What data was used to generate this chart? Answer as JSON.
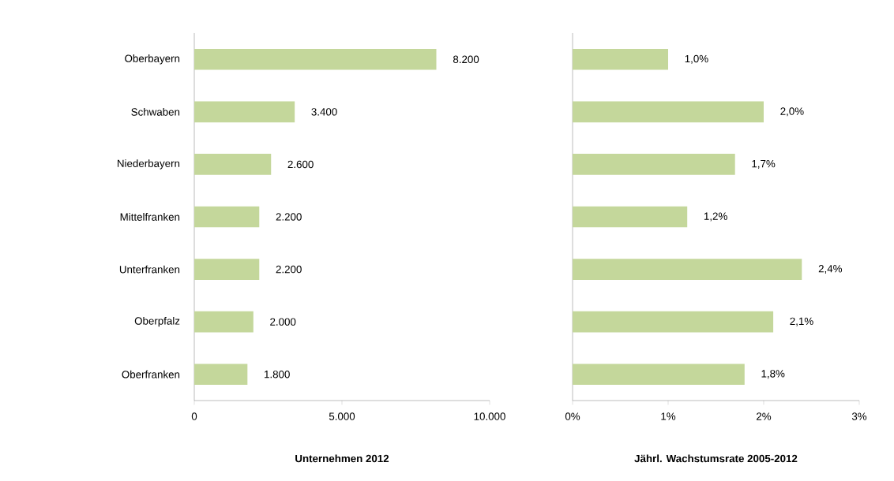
{
  "chart_data": [
    {
      "type": "bar",
      "orientation": "horizontal",
      "xlabel": "Unternehmen 2012",
      "categories": [
        "Oberbayern",
        "Schwaben",
        "Niederbayern",
        "Mittelfranken",
        "Unterfranken",
        "Oberpfalz",
        "Oberfranken"
      ],
      "values": [
        8200,
        3400,
        2600,
        2200,
        2200,
        2000,
        1800
      ],
      "value_labels": [
        "8.200",
        "3.400",
        "2.600",
        "2.200",
        "2.200",
        "2.000",
        "1.800"
      ],
      "color": "#c4d79b",
      "xlim": [
        0,
        10000
      ],
      "xticks": [
        0,
        {
          "value": 5000,
          "label": "5.000"
        },
        {
          "value": 10000,
          "label": "10.000"
        }
      ]
    },
    {
      "type": "bar",
      "orientation": "horizontal",
      "xlabel": "Jährl. Wachstumsrate 2005-2012",
      "categories": [
        null,
        null,
        null,
        null,
        null,
        null,
        null
      ],
      "values": [
        1.0,
        2.0,
        1.7,
        1.2,
        2.4,
        2.1,
        1.8
      ],
      "value_labels": [
        "1,0%",
        "2,0%",
        "1,7%",
        "1,2%",
        "2,4%",
        "2,1%",
        "1,8%"
      ],
      "color": "#c4d79b",
      "xlim": [
        0,
        3
      ],
      "xticks": [
        {
          "value": 0,
          "label": "0%"
        },
        {
          "value": 1,
          "label": "1%"
        },
        {
          "value": 2,
          "label": "2%"
        },
        {
          "value": 3,
          "label": "3%"
        }
      ],
      "tick_labels": "x"
    }
  ]
}
